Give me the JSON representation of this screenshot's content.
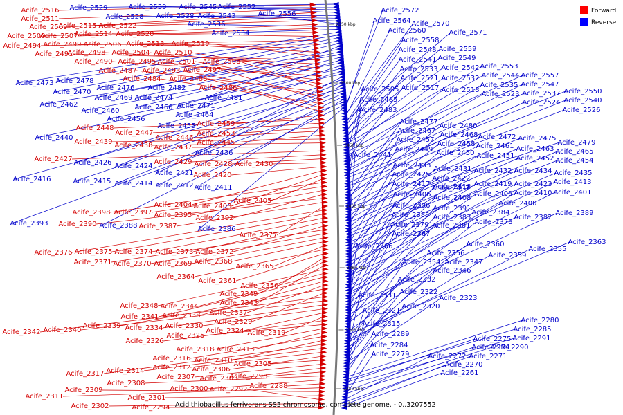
{
  "caption": "Acidithiobacillus ferrivorans SS3 chromosome, complete genome. - 0..3207552",
  "legend": [
    {
      "label": "Forward",
      "color": "#ff0000"
    },
    {
      "label": "Reverse",
      "color": "#0000ff"
    }
  ],
  "colors": {
    "forward": "#d40000",
    "reverse": "#0000cc",
    "backbone": "#777777"
  },
  "ticks": [
    "2550 kbp",
    "2500 kbp",
    "2450 kbp",
    "2400 kbp",
    "2350 kbp",
    "2300 kbp",
    "2250 kbp"
  ],
  "forward_genes": [
    "Acife_2516",
    "Acife_2511",
    "Acife_2509",
    "Acife_2515",
    "Acife_2522",
    "Acife_2500",
    "Acife_2507",
    "Acife_2514",
    "Acife_2520",
    "Acife_2494",
    "Acife_2499",
    "Acife_2506",
    "Acife_2513",
    "Acife_2519",
    "Acife_2491",
    "Acife_2498",
    "Acife_2504",
    "Acife_2510",
    "Acife_2490",
    "Acife_2495",
    "Acife_2501",
    "Acife_2508",
    "Acife_2487",
    "Acife_2493",
    "Acife_2497",
    "Acife_2484",
    "Acife_2488",
    "Acife_2486",
    "Acife_2459",
    "Acife_2448",
    "Acife_2447",
    "Acife_2453",
    "Acife_2446",
    "Acife_2445",
    "Acife_2439",
    "Acife_2438",
    "Acife_2437",
    "Acife_2427",
    "Acife_2429",
    "Acife_2428",
    "Acife_2430",
    "Acife_2420",
    "Acife_2404",
    "Acife_2403",
    "Acife_2405",
    "Acife_2398",
    "Acife_2397",
    "Acife_2395",
    "Acife_2392",
    "Acife_2390",
    "Acife_2387",
    "Acife_2377",
    "Acife_2376",
    "Acife_2375",
    "Acife_2374",
    "Acife_2373",
    "Acife_2372",
    "Acife_2371",
    "Acife_2370",
    "Acife_2369",
    "Acife_2368",
    "Acife_2365",
    "Acife_2364",
    "Acife_2361",
    "Acife_2350",
    "Acife_2349",
    "Acife_2343",
    "Acife_2348",
    "Acife_2344",
    "Acife_2341",
    "Acife_2338",
    "Acife_2337",
    "Acife_2339",
    "Acife_2329",
    "Acife_2342",
    "Acife_2340",
    "Acife_2334",
    "Acife_2330",
    "Acife_2324",
    "Acife_2319",
    "Acife_2326",
    "Acife_2325",
    "Acife_2318",
    "Acife_2313",
    "Acife_2316",
    "Acife_2310",
    "Acife_2317",
    "Acife_2314",
    "Acife_2312",
    "Acife_2306",
    "Acife_2305",
    "Acife_2307",
    "Acife_2303",
    "Acife_2298",
    "Acife_2308",
    "Acife_2300",
    "Acife_2288",
    "Acife_2311",
    "Acife_2309",
    "Acife_2301",
    "Acife_2292",
    "Acife_2302",
    "Acife_2294"
  ],
  "reverse_genes": [
    "Acife_2529",
    "Acife_2539",
    "Acife_2545",
    "Acife_2552",
    "Acife_2528",
    "Acife_2538",
    "Acife_2543",
    "Acife_2556",
    "Acife_2536",
    "Acife_2534",
    "Acife_2473",
    "Acife_2478",
    "Acife_2470",
    "Acife_2476",
    "Acife_2482",
    "Acife_2481",
    "Acife_2469",
    "Acife_2474",
    "Acife_2462",
    "Acife_2466",
    "Acife_2471",
    "Acife_2460",
    "Acife_2464",
    "Acife_2456",
    "Acife_2455",
    "Acife_2440",
    "Acife_2436",
    "Acife_2426",
    "Acife_2424",
    "Acife_2421",
    "Acife_2416",
    "Acife_2415",
    "Acife_2414",
    "Acife_2412",
    "Acife_2411",
    "Acife_2393",
    "Acife_2388",
    "Acife_2386",
    "Acife_2572",
    "Acife_2564",
    "Acife_2570",
    "Acife_2560",
    "Acife_2571",
    "Acife_2558",
    "Acife_2548",
    "Acife_2559",
    "Acife_2541",
    "Acife_2549",
    "Acife_2533",
    "Acife_2542",
    "Acife_2553",
    "Acife_2521",
    "Acife_2532",
    "Acife_2544",
    "Acife_2557",
    "Acife_2505",
    "Acife_2517",
    "Acife_2518",
    "Acife_2535",
    "Acife_2547",
    "Acife_2523",
    "Acife_2537",
    "Acife_2550",
    "Acife_2485",
    "Acife_2524",
    "Acife_2540",
    "Acife_2483",
    "Acife_2526",
    "Acife_2477",
    "Acife_2480",
    "Acife_2467",
    "Acife_2468",
    "Acife_2472",
    "Acife_2475",
    "Acife_2479",
    "Acife_2457",
    "Acife_2458",
    "Acife_2461",
    "Acife_2463",
    "Acife_2449",
    "Acife_2450",
    "Acife_2451",
    "Acife_2452",
    "Acife_2465",
    "Acife_2441",
    "Acife_2454",
    "Acife_2433",
    "Acife_2431",
    "Acife_2432",
    "Acife_2434",
    "Acife_2425",
    "Acife_2422",
    "Acife_2435",
    "Acife_2417",
    "Acife_2418",
    "Acife_2419",
    "Acife_2423",
    "Acife_2413",
    "Acife_2407",
    "Acife_2406",
    "Acife_2408",
    "Acife_2409",
    "Acife_2410",
    "Acife_2401",
    "Acife_2400",
    "Acife_2396",
    "Acife_2391",
    "Acife_2384",
    "Acife_2389",
    "Acife_2385",
    "Acife_2383",
    "Acife_2382",
    "Acife_2379",
    "Acife_2381",
    "Acife_2378",
    "Acife_2367",
    "Acife_2366",
    "Acife_2360",
    "Acife_2363",
    "Acife_2356",
    "Acife_2355",
    "Acife_2359",
    "Acife_2354",
    "Acife_2347",
    "Acife_2346",
    "Acife_2332",
    "Acife_2331",
    "Acife_2322",
    "Acife_2323",
    "Acife_2321",
    "Acife_2320",
    "Acife_2315",
    "Acife_2289",
    "Acife_2280",
    "Acife_2285",
    "Acife_2275",
    "Acife_2291",
    "Acife_2284",
    "Acife_2274",
    "Acife_2290",
    "Acife_2279",
    "Acife_2272",
    "Acife_2271",
    "Acife_2270",
    "Acife_2261"
  ]
}
